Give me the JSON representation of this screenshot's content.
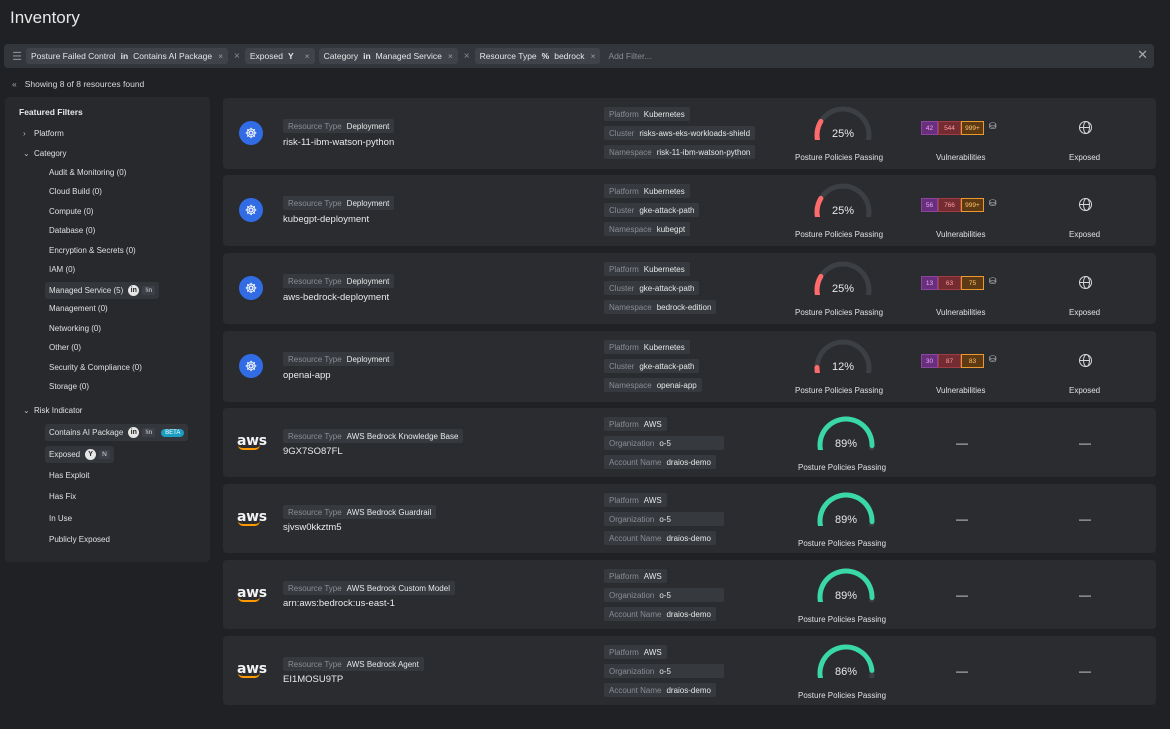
{
  "page_title": "Inventory",
  "filters": [
    {
      "field": "Posture Failed Control",
      "op": "in",
      "value": "Contains AI Package"
    },
    {
      "field": "Exposed",
      "op": "",
      "value": "Y"
    },
    {
      "field": "Category",
      "op": "in",
      "value": "Managed Service"
    },
    {
      "field": "Resource Type",
      "op": "%",
      "value": "bedrock"
    }
  ],
  "add_filter_placeholder": "Add Filter...",
  "showing": "Showing 8 of 8 resources found",
  "sidebar": {
    "title": "Featured Filters",
    "platform": "Platform",
    "category": "Category",
    "categories": [
      "Audit & Monitoring (0)",
      "Cloud Build (0)",
      "Compute (0)",
      "Database (0)",
      "Encryption & Secrets (0)",
      "IAM (0)",
      "Managed Service (5)",
      "Management (0)",
      "Networking (0)",
      "Other (0)",
      "Security & Compliance (0)",
      "Storage (0)"
    ],
    "in_tag": "in",
    "not_in_tag": "!in",
    "risk_indicator": "Risk Indicator",
    "risk_items": [
      "Contains AI Package",
      "Exposed",
      "Has Exploit",
      "Has Fix",
      "In Use",
      "Publicly Exposed"
    ],
    "beta": "BETA",
    "y_tag": "Y",
    "n_tag": "N"
  },
  "labels": {
    "resource_type": "Resource Type",
    "platform": "Platform",
    "cluster": "Cluster",
    "namespace": "Namespace",
    "organization": "Organization",
    "account_name": "Account Name",
    "posture": "Posture Policies Passing",
    "vulnerabilities": "Vulnerabilities",
    "exposed": "Exposed",
    "dash": "—"
  },
  "k8s_resources": [
    {
      "type": "Deployment",
      "name": "risk-11-ibm-watson-python",
      "platform": "Kubernetes",
      "cluster": "risks-aws-eks-workloads-shield",
      "namespace": "risk-11-ibm-watson-python",
      "posture": "25%",
      "pct": 25,
      "vulns": [
        "42",
        "544",
        "999+"
      ]
    },
    {
      "type": "Deployment",
      "name": "kubegpt-deployment",
      "platform": "Kubernetes",
      "cluster": "gke-attack-path",
      "namespace": "kubegpt",
      "posture": "25%",
      "pct": 25,
      "vulns": [
        "56",
        "766",
        "999+"
      ]
    },
    {
      "type": "Deployment",
      "name": "aws-bedrock-deployment",
      "platform": "Kubernetes",
      "cluster": "gke-attack-path",
      "namespace": "bedrock-edition",
      "posture": "25%",
      "pct": 25,
      "vulns": [
        "13",
        "63",
        "75"
      ]
    },
    {
      "type": "Deployment",
      "name": "openai-app",
      "platform": "Kubernetes",
      "cluster": "gke-attack-path",
      "namespace": "openai-app",
      "posture": "12%",
      "pct": 12,
      "vulns": [
        "30",
        "87",
        "83"
      ]
    }
  ],
  "aws_resources": [
    {
      "type": "AWS Bedrock Knowledge Base",
      "name": "9GX7SO87FL",
      "platform": "AWS",
      "organization": "o-5",
      "account": "draios-demo",
      "posture": "89%",
      "pct": 89
    },
    {
      "type": "AWS Bedrock Guardrail",
      "name": "sjvsw0kkztm5",
      "platform": "AWS",
      "organization": "o-5",
      "account": "draios-demo",
      "posture": "89%",
      "pct": 89
    },
    {
      "type": "AWS Bedrock Custom Model",
      "name": "arn:aws:bedrock:us-east-1",
      "platform": "AWS",
      "organization": "o-5",
      "account": "draios-demo",
      "posture": "89%",
      "pct": 89
    },
    {
      "type": "AWS Bedrock Agent",
      "name": "EI1MOSU9TP",
      "platform": "AWS",
      "organization": "o-5",
      "account": "draios-demo",
      "posture": "86%",
      "pct": 86
    }
  ],
  "logos": {
    "aws": "aws"
  },
  "colors": {
    "low": "#ff6b6b",
    "high": "#3ad8a4",
    "track": "#3c3f44"
  },
  "icons": {
    "k8s": "kubernetes-icon",
    "exposed": "globe-icon",
    "vuln": "lock-icon"
  }
}
